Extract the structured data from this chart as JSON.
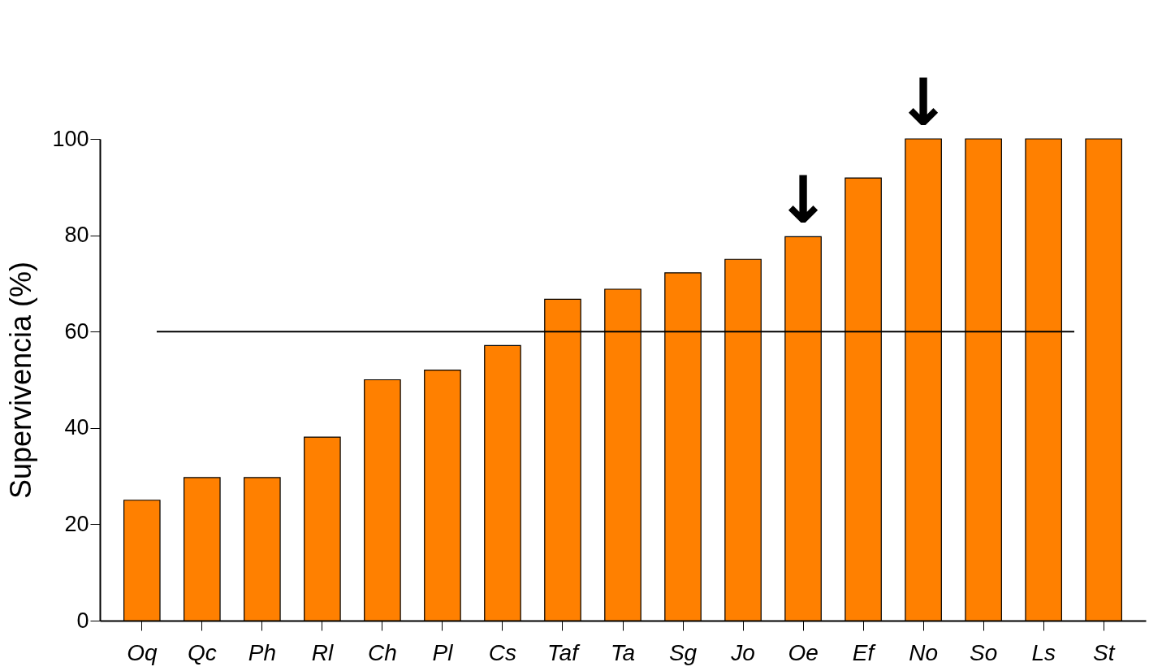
{
  "chart_data": {
    "type": "bar",
    "ylabel": "Supervivencia (%)",
    "categories": [
      "Oq",
      "Qc",
      "Ph",
      "Rl",
      "Ch",
      "Pl",
      "Cs",
      "Taf",
      "Ta",
      "Sg",
      "Jo",
      "Oe",
      "Ef",
      "No",
      "So",
      "Ls",
      "St"
    ],
    "values": [
      25,
      29.7,
      29.7,
      38.1,
      50,
      52,
      57.1,
      66.7,
      68.8,
      72.2,
      75,
      79.7,
      91.9,
      100,
      100,
      100,
      100
    ],
    "color": "#ff8000",
    "ylim": [
      0,
      100
    ],
    "yticks": [
      0,
      20,
      40,
      60,
      80,
      100
    ],
    "grid": false,
    "ref_lines": [
      {
        "axis": "y",
        "value": 60,
        "color": "#000000"
      }
    ],
    "annotations": [
      {
        "text": "↓",
        "x": "Oe",
        "y": 79.7
      },
      {
        "text": "↓",
        "x": "No",
        "y": 100
      }
    ]
  }
}
